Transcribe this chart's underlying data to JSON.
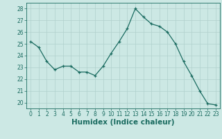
{
  "x": [
    0,
    1,
    2,
    3,
    4,
    5,
    6,
    7,
    8,
    9,
    10,
    11,
    12,
    13,
    14,
    15,
    16,
    17,
    18,
    19,
    20,
    21,
    22,
    23
  ],
  "y": [
    25.2,
    24.7,
    23.5,
    22.8,
    23.1,
    23.1,
    22.6,
    22.6,
    22.3,
    23.1,
    24.2,
    25.2,
    26.3,
    28.0,
    27.3,
    26.7,
    26.5,
    26.0,
    25.0,
    23.5,
    22.3,
    21.0,
    19.9,
    19.8
  ],
  "xlim": [
    -0.5,
    23.5
  ],
  "ylim": [
    19.5,
    28.5
  ],
  "yticks": [
    20,
    21,
    22,
    23,
    24,
    25,
    26,
    27,
    28
  ],
  "xticks": [
    0,
    1,
    2,
    3,
    4,
    5,
    6,
    7,
    8,
    9,
    10,
    11,
    12,
    13,
    14,
    15,
    16,
    17,
    18,
    19,
    20,
    21,
    22,
    23
  ],
  "xlabel": "Humidex (Indice chaleur)",
  "line_color": "#1a6b60",
  "marker": "+",
  "marker_color": "#1a6b60",
  "bg_color": "#cce8e4",
  "grid_color": "#b0d0cc",
  "tick_color": "#1a6b60",
  "label_color": "#1a6b60",
  "tick_fontsize": 5.5,
  "xlabel_fontsize": 7.5
}
